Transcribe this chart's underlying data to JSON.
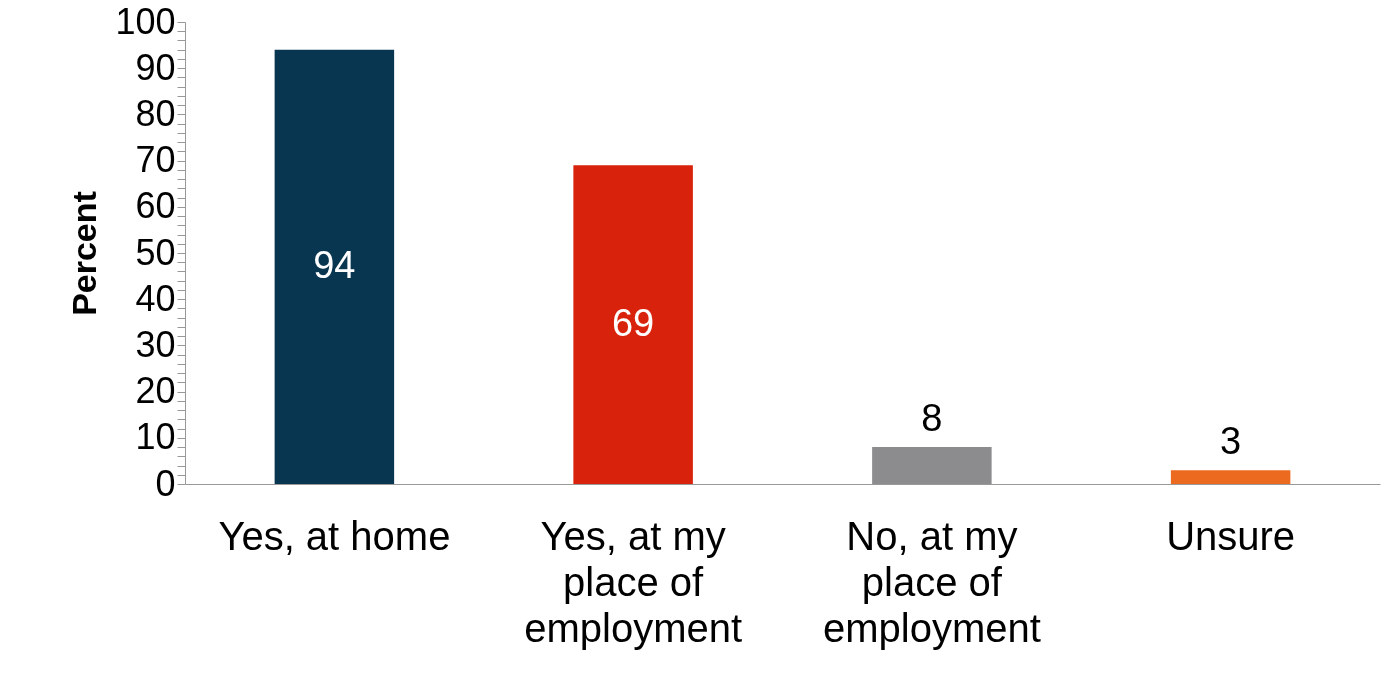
{
  "chart_data": {
    "type": "bar",
    "ylabel": "Percent",
    "categories": [
      "Yes, at home",
      "Yes, at my place of employment",
      "No, at my place of employment",
      "Unsure"
    ],
    "values": [
      94,
      69,
      8,
      3
    ],
    "colors": [
      "#08354f",
      "#d9220b",
      "#8c8c8e",
      "#ec6a1f"
    ],
    "ylim": [
      0,
      100
    ],
    "yticks": [
      0,
      {
        "value": 2,
        "label": null
      },
      {
        "value": 4,
        "label": null
      },
      {
        "value": 6,
        "label": null
      },
      {
        "value": 8,
        "label": null
      },
      10,
      {
        "value": 12,
        "label": null
      },
      {
        "value": 14,
        "label": null
      },
      {
        "value": 16,
        "label": null
      },
      {
        "value": 18,
        "label": null
      },
      20,
      {
        "value": 22,
        "label": null
      },
      {
        "value": 24,
        "label": null
      },
      {
        "value": 26,
        "label": null
      },
      {
        "value": 28,
        "label": null
      },
      30,
      {
        "value": 32,
        "label": null
      },
      {
        "value": 34,
        "label": null
      },
      {
        "value": 36,
        "label": null
      },
      {
        "value": 38,
        "label": null
      },
      40,
      {
        "value": 42,
        "label": null
      },
      {
        "value": 44,
        "label": null
      },
      {
        "value": 46,
        "label": null
      },
      {
        "value": 48,
        "label": null
      },
      50,
      {
        "value": 52,
        "label": null
      },
      {
        "value": 54,
        "label": null
      },
      {
        "value": 56,
        "label": null
      },
      {
        "value": 58,
        "label": null
      },
      60,
      {
        "value": 62,
        "label": null
      },
      {
        "value": 64,
        "label": null
      },
      {
        "value": 66,
        "label": null
      },
      {
        "value": 68,
        "label": null
      },
      70,
      {
        "value": 72,
        "label": null
      },
      {
        "value": 74,
        "label": null
      },
      {
        "value": 76,
        "label": null
      },
      {
        "value": 78,
        "label": null
      },
      80,
      {
        "value": 82,
        "label": null
      },
      {
        "value": 84,
        "label": null
      },
      {
        "value": 86,
        "label": null
      },
      {
        "value": 88,
        "label": null
      },
      90,
      {
        "value": 92,
        "label": null
      },
      {
        "value": 94,
        "label": null
      },
      {
        "value": 96,
        "label": null
      },
      {
        "value": 98,
        "label": null
      },
      100
    ],
    "data_labels": true,
    "grid": false,
    "legend": false
  }
}
